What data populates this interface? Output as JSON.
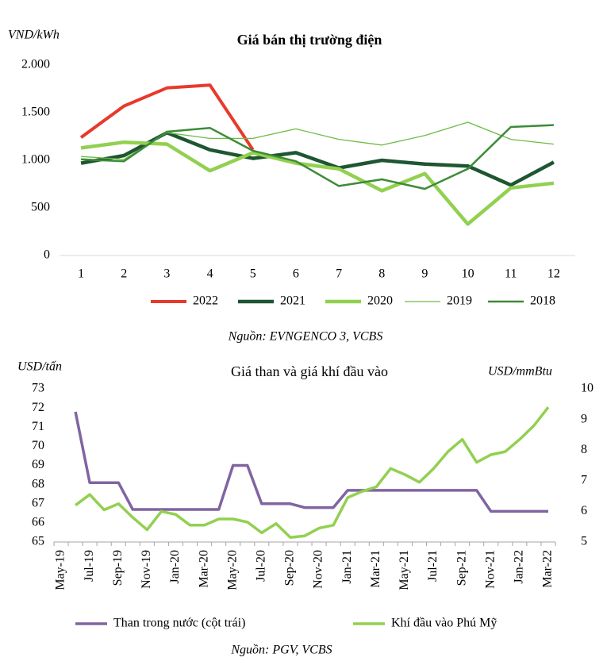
{
  "chart_data": [
    {
      "type": "line",
      "title": "Giá bán thị trường điện",
      "y_label": "VND/kWh",
      "source": "Nguồn: EVNGENCO 3, VCBS",
      "categories": [
        "1",
        "2",
        "3",
        "4",
        "5",
        "6",
        "7",
        "8",
        "9",
        "10",
        "11",
        "12"
      ],
      "ylim": [
        0,
        2000
      ],
      "yticks": [
        0,
        500,
        {
          "value": 1000,
          "label": "1.000"
        },
        {
          "value": 1500,
          "label": "1.500"
        },
        {
          "value": 2000,
          "label": "2.000"
        }
      ],
      "grid": false,
      "legend": "bottom",
      "series": [
        {
          "name": "2022",
          "color": "#e8392b",
          "values": [
            1240,
            1570,
            1760,
            1790,
            1110,
            null,
            null,
            null,
            null,
            null,
            null,
            null
          ]
        },
        {
          "name": "2021",
          "color": "#1e5631",
          "values": [
            970,
            1050,
            1290,
            1110,
            1020,
            1080,
            920,
            1000,
            960,
            940,
            740,
            980
          ]
        },
        {
          "name": "2020",
          "color": "#92d050",
          "values": [
            1130,
            1190,
            1170,
            890,
            1080,
            970,
            910,
            680,
            860,
            330,
            710,
            760
          ]
        },
        {
          "name": "2019",
          "color": "#6dbb45",
          "values": [
            1040,
            1010,
            1290,
            1230,
            1230,
            1330,
            1220,
            1160,
            1260,
            1400,
            1220,
            1170
          ]
        },
        {
          "name": "2018",
          "color": "#3d8b37",
          "values": [
            1010,
            990,
            1300,
            1340,
            1100,
            990,
            730,
            800,
            700,
            910,
            1350,
            1370
          ]
        }
      ]
    },
    {
      "type": "line",
      "title": "Giá than và giá khí đầu vào",
      "y_label": "USD/tấn",
      "y2_label": "USD/mmBtu",
      "source": "Nguồn: PGV, VCBS",
      "categories": [
        "May-19",
        null,
        "Jul-19",
        null,
        "Sep-19",
        null,
        "Nov-19",
        null,
        "Jan-20",
        null,
        "Mar-20",
        null,
        "May-20",
        null,
        "Jul-20",
        null,
        "Sep-20",
        null,
        "Nov-20",
        null,
        "Jan-21",
        null,
        "Mar-21",
        null,
        "May-21",
        null,
        "Jul-21",
        null,
        "Sep-21",
        null,
        "Nov-21",
        null,
        "Jan-22",
        null,
        "Mar-22"
      ],
      "ylim": [
        65,
        73
      ],
      "yticks": [
        65,
        66,
        67,
        68,
        69,
        70,
        71,
        72,
        73
      ],
      "y2lim": [
        5,
        10
      ],
      "y2ticks": [
        5,
        6,
        7,
        8,
        9,
        10
      ],
      "grid": false,
      "legend": "bottom",
      "series": [
        {
          "name": "Than trong nước (cột trái)",
          "color": "#8064a2",
          "values": [
            null,
            71.8,
            68.1,
            68.1,
            68.1,
            66.7,
            66.7,
            66.7,
            66.7,
            66.7,
            66.7,
            66.7,
            69.0,
            69.0,
            67.0,
            67.0,
            67.0,
            66.8,
            66.8,
            66.8,
            67.7,
            67.7,
            67.7,
            67.7,
            67.7,
            67.7,
            67.7,
            67.7,
            67.7,
            67.7,
            66.6,
            66.6,
            66.6,
            66.6,
            66.6
          ]
        },
        {
          "name": "Khí đầu vào Phú Mỹ",
          "color": "#92d050",
          "axis": "y2",
          "values": [
            null,
            6.2,
            6.55,
            6.05,
            6.25,
            5.8,
            5.4,
            6.0,
            5.9,
            5.55,
            5.55,
            5.75,
            5.75,
            5.65,
            5.3,
            5.6,
            5.15,
            5.2,
            5.45,
            5.55,
            6.45,
            6.65,
            6.8,
            7.4,
            7.2,
            6.95,
            7.4,
            7.95,
            8.35,
            7.6,
            7.85,
            7.95,
            8.35,
            8.8,
            9.4
          ]
        }
      ]
    }
  ]
}
